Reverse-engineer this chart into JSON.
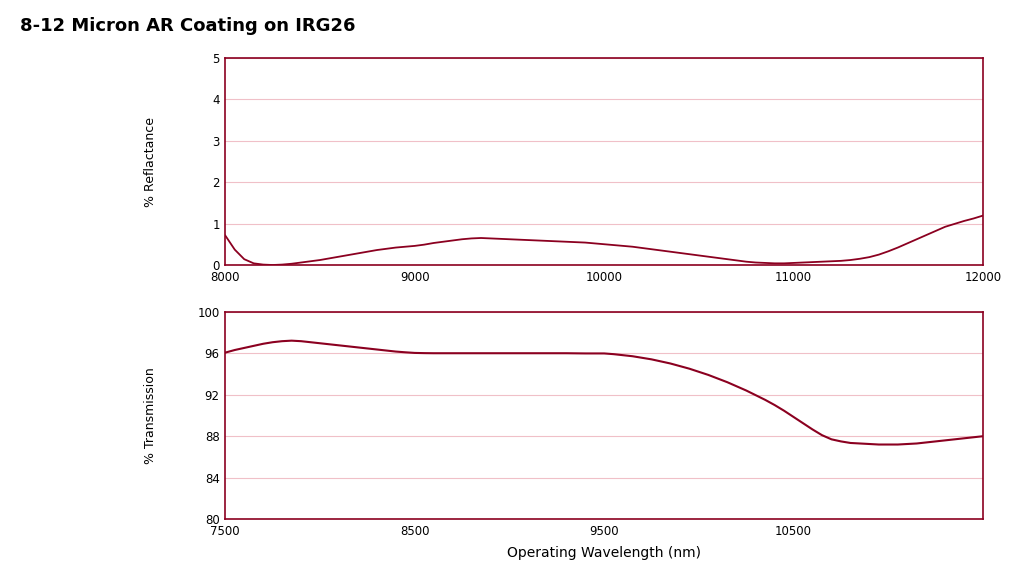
{
  "title": "8-12 Micron AR Coating on IRG26",
  "title_fontsize": 13,
  "title_fontweight": "bold",
  "line_color": "#8B0020",
  "background_color": "#ffffff",
  "grid_color": "#f0c0c8",
  "spine_color": "#8B0020",
  "reflectance_ylabel": "% Reflactance",
  "reflectance_xlim": [
    8000,
    12000
  ],
  "reflectance_ylim": [
    0.0,
    5.0
  ],
  "reflectance_yticks": [
    0.0,
    1.0,
    2.0,
    3.0,
    4.0,
    5.0
  ],
  "reflectance_xticks": [
    8000,
    9000,
    10000,
    11000,
    12000
  ],
  "transmission_xlabel": "Operating Wavelength (nm)",
  "transmission_ylabel": "% Transmission",
  "transmission_xlim": [
    7500,
    11500
  ],
  "transmission_ylim": [
    80,
    100
  ],
  "transmission_yticks": [
    80,
    84,
    88,
    92,
    96,
    100
  ],
  "transmission_xticks": [
    7500,
    8500,
    9500,
    10500
  ],
  "reflectance_x": [
    8000,
    8050,
    8100,
    8150,
    8200,
    8250,
    8300,
    8350,
    8400,
    8450,
    8500,
    8550,
    8600,
    8650,
    8700,
    8750,
    8800,
    8850,
    8900,
    8950,
    9000,
    9050,
    9100,
    9150,
    9200,
    9250,
    9300,
    9350,
    9400,
    9450,
    9500,
    9550,
    9600,
    9650,
    9700,
    9750,
    9800,
    9850,
    9900,
    9950,
    10000,
    10050,
    10100,
    10150,
    10200,
    10250,
    10300,
    10350,
    10400,
    10450,
    10500,
    10550,
    10600,
    10650,
    10700,
    10750,
    10800,
    10850,
    10900,
    10950,
    11000,
    11050,
    11100,
    11150,
    11200,
    11250,
    11300,
    11350,
    11400,
    11450,
    11500,
    11550,
    11600,
    11650,
    11700,
    11750,
    11800,
    11850,
    11900,
    11950,
    12000
  ],
  "reflectance_y": [
    0.72,
    0.38,
    0.15,
    0.05,
    0.02,
    0.01,
    0.02,
    0.04,
    0.07,
    0.1,
    0.13,
    0.17,
    0.21,
    0.25,
    0.29,
    0.33,
    0.37,
    0.4,
    0.43,
    0.45,
    0.47,
    0.5,
    0.54,
    0.57,
    0.6,
    0.63,
    0.65,
    0.66,
    0.65,
    0.64,
    0.63,
    0.62,
    0.61,
    0.6,
    0.59,
    0.58,
    0.57,
    0.56,
    0.55,
    0.53,
    0.51,
    0.49,
    0.47,
    0.45,
    0.42,
    0.39,
    0.36,
    0.33,
    0.3,
    0.27,
    0.24,
    0.21,
    0.18,
    0.15,
    0.12,
    0.09,
    0.07,
    0.06,
    0.05,
    0.05,
    0.06,
    0.07,
    0.08,
    0.09,
    0.1,
    0.11,
    0.13,
    0.16,
    0.2,
    0.26,
    0.34,
    0.43,
    0.53,
    0.63,
    0.73,
    0.83,
    0.93,
    1.0,
    1.07,
    1.13,
    1.2
  ],
  "transmission_x": [
    7500,
    7550,
    7600,
    7650,
    7700,
    7750,
    7800,
    7850,
    7900,
    7950,
    8000,
    8050,
    8100,
    8150,
    8200,
    8250,
    8300,
    8350,
    8400,
    8450,
    8500,
    8550,
    8600,
    8650,
    8700,
    8750,
    8800,
    8850,
    8900,
    8950,
    9000,
    9050,
    9100,
    9150,
    9200,
    9250,
    9300,
    9350,
    9400,
    9450,
    9500,
    9550,
    9600,
    9650,
    9700,
    9750,
    9800,
    9850,
    9900,
    9950,
    10000,
    10050,
    10100,
    10150,
    10200,
    10250,
    10300,
    10350,
    10400,
    10450,
    10500,
    10550,
    10600,
    10650,
    10700,
    10750,
    10800,
    10850,
    10900,
    10950,
    11000,
    11050,
    11100,
    11150,
    11200,
    11250,
    11300,
    11350,
    11400,
    11450,
    11500
  ],
  "transmission_y": [
    96.05,
    96.3,
    96.5,
    96.7,
    96.9,
    97.05,
    97.15,
    97.2,
    97.15,
    97.05,
    96.95,
    96.85,
    96.75,
    96.65,
    96.55,
    96.45,
    96.35,
    96.25,
    96.15,
    96.08,
    96.02,
    96.0,
    95.99,
    95.99,
    95.99,
    95.99,
    95.99,
    95.99,
    95.99,
    95.99,
    95.99,
    95.99,
    95.99,
    95.99,
    95.99,
    95.99,
    95.99,
    95.98,
    95.97,
    95.97,
    95.97,
    95.9,
    95.8,
    95.7,
    95.55,
    95.4,
    95.2,
    95.0,
    94.75,
    94.5,
    94.2,
    93.9,
    93.55,
    93.2,
    92.8,
    92.4,
    91.95,
    91.5,
    91.0,
    90.45,
    89.85,
    89.25,
    88.65,
    88.1,
    87.7,
    87.5,
    87.35,
    87.3,
    87.25,
    87.2,
    87.2,
    87.2,
    87.25,
    87.3,
    87.4,
    87.5,
    87.6,
    87.7,
    87.8,
    87.9,
    88.0
  ]
}
